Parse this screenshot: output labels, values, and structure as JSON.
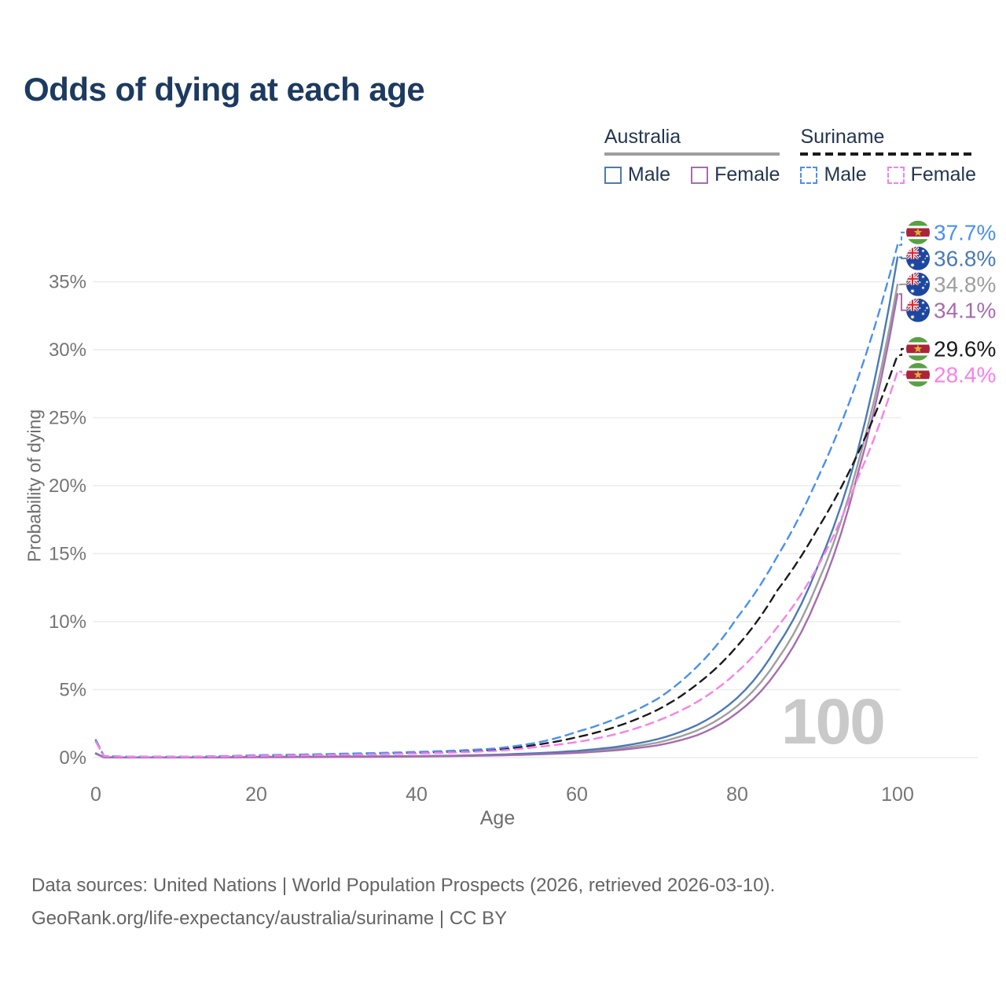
{
  "page": {
    "title": "Odds of dying at each age",
    "watermark": "100",
    "footer_line1": "Data sources: United Nations | World Population Prospects (2026, retrieved 2026-03-10).",
    "footer_line2": "GeoRank.org/life-expectancy/australia/suriname | CC BY"
  },
  "colors": {
    "title": "#1d3a5f",
    "legend_text": "#24364f",
    "tick_label": "#757575",
    "axis_label": "#6e6e6e",
    "grid": "#ececec",
    "footer": "#646464",
    "watermark": "#c9c9c9",
    "australia_male": "#4b7ab5",
    "australia_female": "#a76cae",
    "australia_total": "#9e9e9e",
    "suriname_male": "#4a90ee",
    "suriname_female": "#f880e8",
    "suriname_total": "#1a1a1a"
  },
  "legend": {
    "groups": [
      {
        "label": "Australia",
        "underline_style": "solid",
        "underline_color": "#9e9e9e",
        "items": [
          {
            "label": "Male",
            "box_style": "solid",
            "box_color": "#4b7ab5"
          },
          {
            "label": "Female",
            "box_style": "solid",
            "box_color": "#a76cae"
          }
        ]
      },
      {
        "label": "Suriname",
        "underline_style": "dashed",
        "underline_color": "#1a1a1a",
        "items": [
          {
            "label": "Male",
            "box_style": "dashed",
            "box_color": "#4a90ee"
          },
          {
            "label": "Female",
            "box_style": "dashed",
            "box_color": "#f880e8"
          }
        ]
      }
    ]
  },
  "chart_data": {
    "type": "line",
    "title": "Odds of dying at each age",
    "xlabel": "Age",
    "ylabel": "Probability of dying",
    "xlim": [
      0,
      100
    ],
    "ylim": [
      0,
      38.5
    ],
    "xticks": [
      0,
      20,
      40,
      60,
      80,
      100
    ],
    "yticks": [
      0,
      5,
      10,
      15,
      20,
      25,
      30,
      35
    ],
    "ytick_suffix": "%",
    "grid": "horizontal",
    "legend_position": "top-right",
    "x": [
      0,
      1,
      5,
      10,
      20,
      30,
      40,
      45,
      50,
      55,
      60,
      65,
      70,
      75,
      80,
      85,
      90,
      95,
      100
    ],
    "series": [
      {
        "name": "Australia Total",
        "color": "#9e9e9e",
        "dash": "solid",
        "flag": "australia",
        "end_label": "34.8%",
        "values": [
          0.3,
          0.028,
          0.011,
          0.011,
          0.04,
          0.065,
          0.095,
          0.13,
          0.19,
          0.28,
          0.42,
          0.67,
          1.1,
          2.0,
          3.8,
          7.2,
          12.8,
          21.5,
          34.8
        ]
      },
      {
        "name": "Australia Male",
        "color": "#4b7ab5",
        "dash": "solid",
        "flag": "australia",
        "end_label": "36.8%",
        "values": [
          0.32,
          0.03,
          0.012,
          0.012,
          0.05,
          0.08,
          0.11,
          0.15,
          0.22,
          0.33,
          0.5,
          0.8,
          1.35,
          2.4,
          4.4,
          8.2,
          14.0,
          22.5,
          36.8
        ]
      },
      {
        "name": "Australia Female",
        "color": "#a76cae",
        "dash": "solid",
        "flag": "australia",
        "end_label": "34.1%",
        "values": [
          0.28,
          0.025,
          0.01,
          0.01,
          0.03,
          0.05,
          0.08,
          0.11,
          0.16,
          0.24,
          0.35,
          0.55,
          0.9,
          1.65,
          3.3,
          6.4,
          11.8,
          20.8,
          34.1
        ]
      },
      {
        "name": "Suriname Total",
        "color": "#1a1a1a",
        "dash": "dashed",
        "flag": "suriname",
        "end_label": "29.6%",
        "values": [
          1.25,
          0.11,
          0.055,
          0.055,
          0.15,
          0.24,
          0.36,
          0.45,
          0.58,
          0.95,
          1.5,
          2.3,
          3.5,
          5.4,
          8.2,
          12.3,
          16.8,
          22.3,
          29.6
        ]
      },
      {
        "name": "Suriname Male",
        "color": "#4a90ee",
        "dash": "dashed",
        "flag": "suriname",
        "end_label": "37.7%",
        "values": [
          1.3,
          0.12,
          0.06,
          0.06,
          0.18,
          0.28,
          0.42,
          0.52,
          0.68,
          1.1,
          1.9,
          2.9,
          4.3,
          6.7,
          10.3,
          14.8,
          20.5,
          27.8,
          37.7
        ]
      },
      {
        "name": "Suriname Female",
        "color": "#f880e8",
        "dash": "dashed",
        "flag": "suriname",
        "end_label": "28.4%",
        "values": [
          1.15,
          0.1,
          0.05,
          0.05,
          0.13,
          0.2,
          0.3,
          0.38,
          0.5,
          0.78,
          1.15,
          1.75,
          2.7,
          4.1,
          6.3,
          9.6,
          14.0,
          20.5,
          28.4
        ]
      }
    ]
  }
}
